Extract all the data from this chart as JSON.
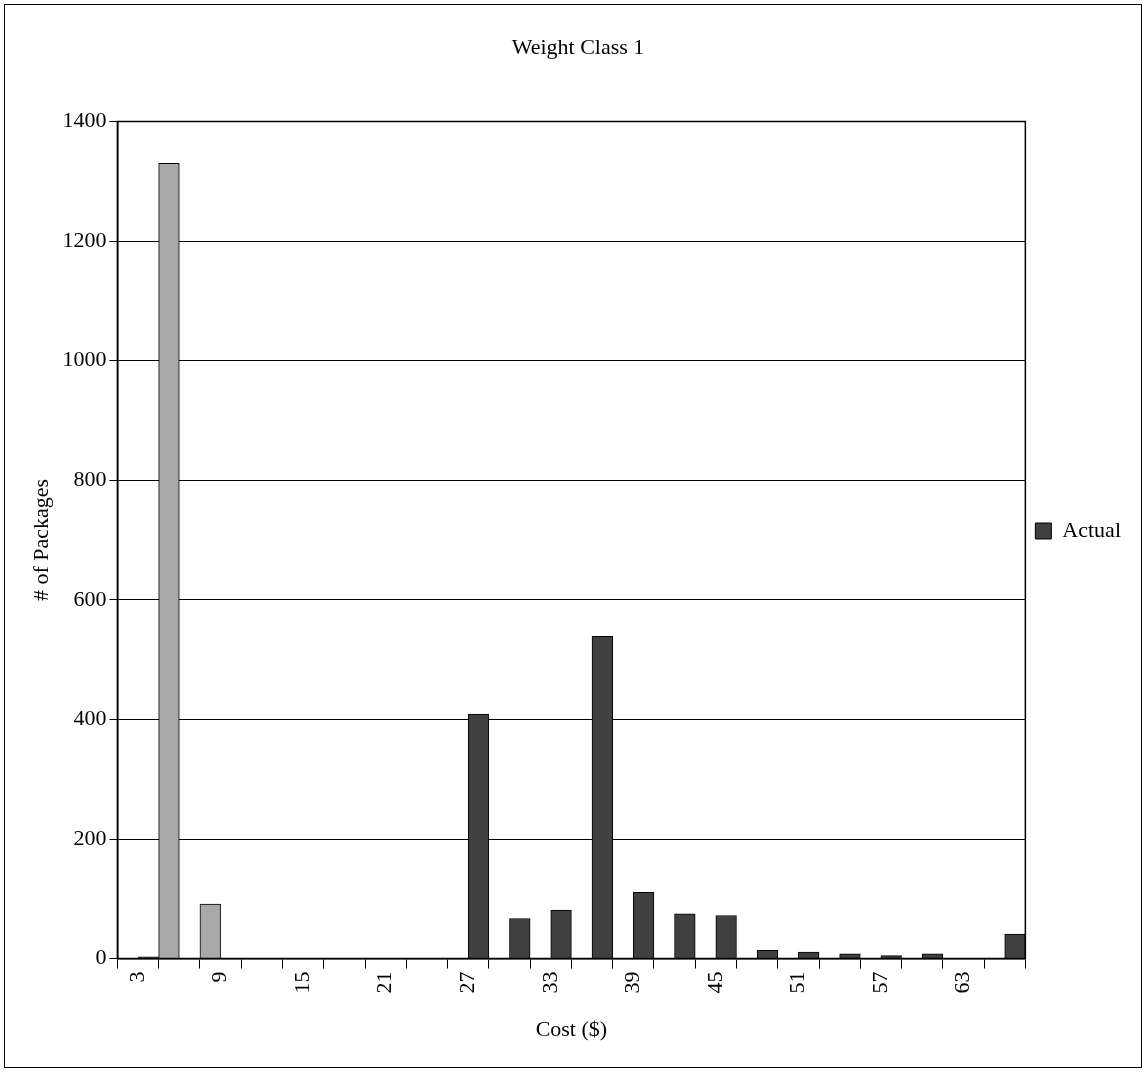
{
  "chart_data": {
    "type": "bar",
    "title": "Weight Class 1",
    "xlabel": "Cost ($)",
    "ylabel": "# of Packages",
    "categories": [
      "3",
      null,
      "9",
      null,
      "15",
      null,
      "21",
      null,
      "27",
      null,
      "33",
      null,
      "39",
      null,
      "45",
      null,
      "51",
      null,
      "57",
      null,
      "63",
      null
    ],
    "series": [
      {
        "color": "#a8a8a8",
        "values": [
          0,
          1330,
          91,
          0,
          0,
          0,
          0,
          0,
          0,
          0,
          0,
          0,
          0,
          0,
          0,
          0,
          0,
          0,
          0,
          0,
          0,
          0
        ]
      },
      {
        "name": "Actual",
        "color": "#404040",
        "values": [
          3,
          0,
          0,
          0,
          0,
          0,
          0,
          0,
          409,
          67,
          81,
          539,
          111,
          75,
          72,
          14,
          11,
          8,
          5,
          8,
          0,
          41
        ]
      }
    ],
    "ylim": [
      0,
      1400
    ],
    "yticks": [
      0,
      200,
      400,
      600,
      800,
      1000,
      1200,
      1400
    ],
    "grid": "y",
    "legend": "right"
  }
}
